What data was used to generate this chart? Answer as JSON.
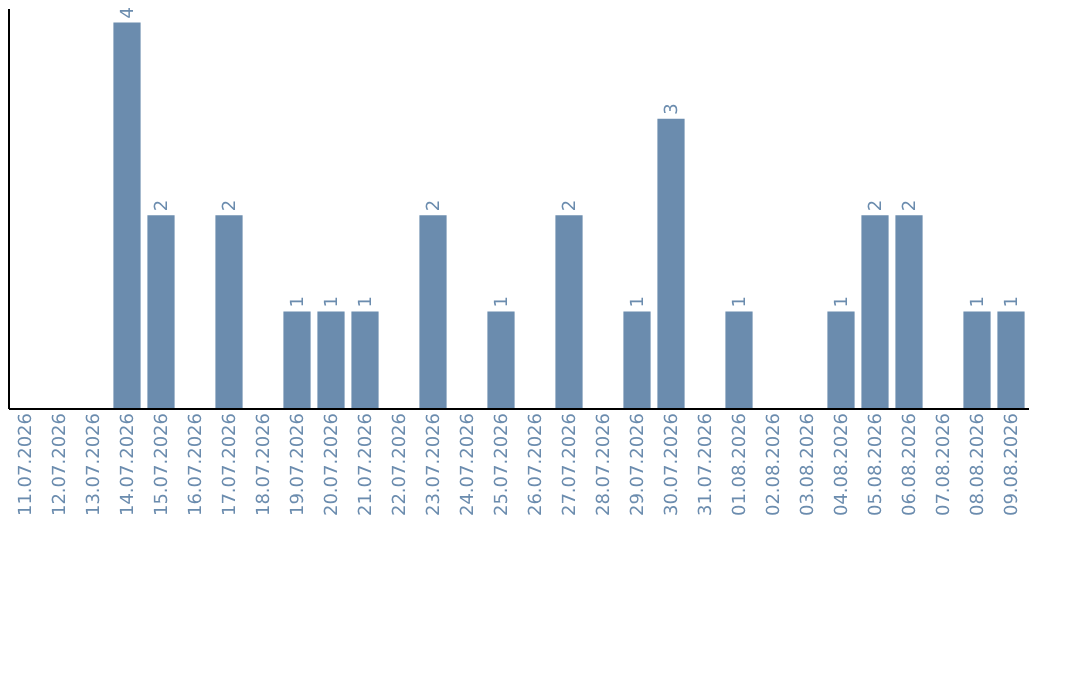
{
  "chart_data": {
    "type": "bar",
    "categories": [
      "11.07.2026",
      "12.07.2026",
      "13.07.2026",
      "14.07.2026",
      "15.07.2026",
      "16.07.2026",
      "17.07.2026",
      "18.07.2026",
      "19.07.2026",
      "20.07.2026",
      "21.07.2026",
      "22.07.2026",
      "23.07.2026",
      "24.07.2026",
      "25.07.2026",
      "26.07.2026",
      "27.07.2026",
      "28.07.2026",
      "29.07.2026",
      "30.07.2026",
      "31.07.2026",
      "01.08.2026",
      "02.08.2026",
      "03.08.2026",
      "04.08.2026",
      "05.08.2026",
      "06.08.2026",
      "07.08.2026",
      "08.08.2026",
      "09.08.2026"
    ],
    "values": [
      0,
      0,
      0,
      4,
      2,
      0,
      2,
      0,
      1,
      1,
      1,
      0,
      2,
      0,
      1,
      0,
      2,
      0,
      1,
      3,
      0,
      1,
      0,
      0,
      1,
      2,
      2,
      0,
      1,
      1
    ],
    "value_labels": [
      null,
      null,
      null,
      "4",
      "2",
      null,
      "2",
      null,
      "1",
      "1",
      "1",
      null,
      "2",
      null,
      "1",
      null,
      "2",
      null,
      "1",
      "3",
      null,
      "1",
      null,
      null,
      "1",
      "2",
      "2",
      null,
      "1",
      "1"
    ],
    "color": "#6b8cae",
    "ylim": [
      0,
      4.15
    ],
    "tick_labels": "x",
    "grid": false
  }
}
